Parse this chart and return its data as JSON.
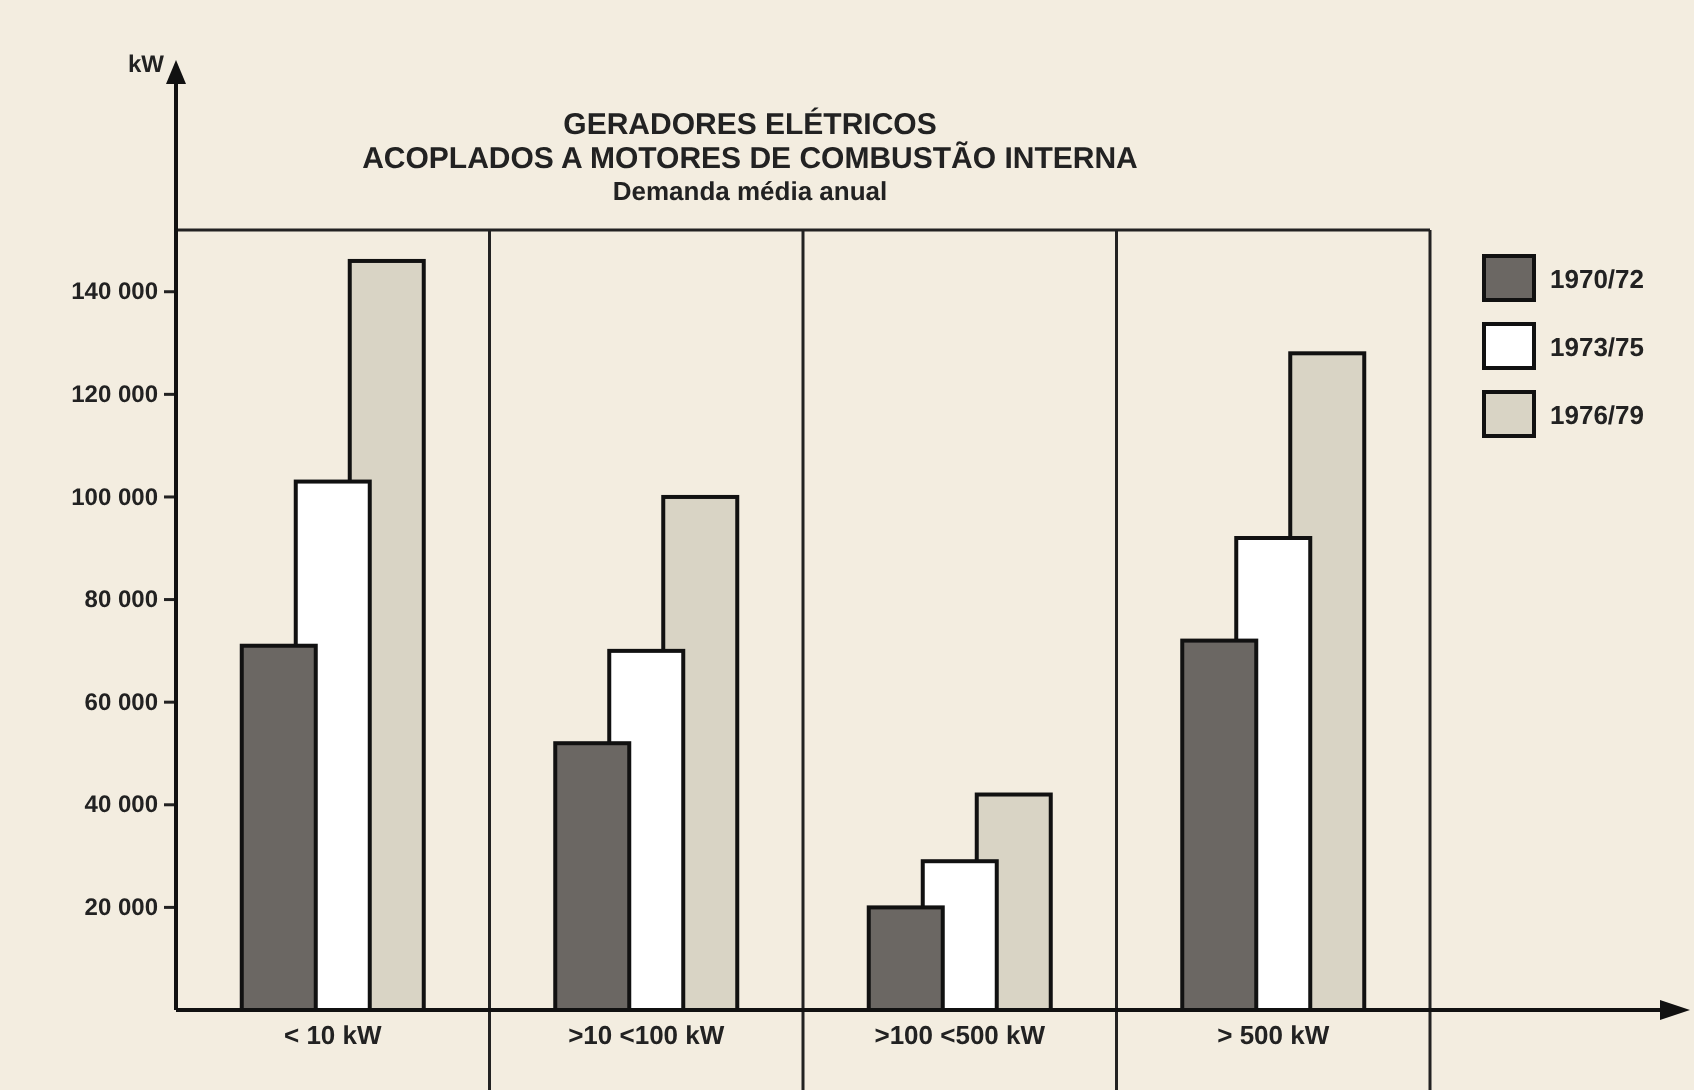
{
  "chart_data": {
    "type": "bar",
    "title": "GERADORES ELÉTRICOS\nACOPLADOS A MOTORES DE COMBUSTÃO INTERNA",
    "subtitle": "Demanda média anual",
    "ylabel": "kW",
    "categories": [
      "< 10 kW",
      ">10 <100 kW",
      ">100 <500 kW",
      "> 500 kW"
    ],
    "series": [
      {
        "name": "1970/72",
        "color": "#6b6763",
        "values": [
          71000,
          52000,
          20000,
          72000
        ]
      },
      {
        "name": "1973/75",
        "color": "#ffffff",
        "values": [
          103000,
          70000,
          29000,
          92000
        ]
      },
      {
        "name": "1976/79",
        "color": "#d9d4c5",
        "values": [
          146000,
          100000,
          42000,
          128000
        ]
      }
    ],
    "ylim": [
      0,
      184000
    ],
    "yticks": [
      {
        "value": 20000,
        "label": "20 000"
      },
      {
        "value": 40000,
        "label": "40 000"
      },
      {
        "value": 60000,
        "label": "60 000"
      },
      {
        "value": 80000,
        "label": "80 000"
      },
      {
        "value": 100000,
        "label": "100 000"
      },
      {
        "value": 120000,
        "label": "120 000"
      },
      {
        "value": 140000,
        "label": "140 000"
      }
    ],
    "legend": "top right"
  }
}
